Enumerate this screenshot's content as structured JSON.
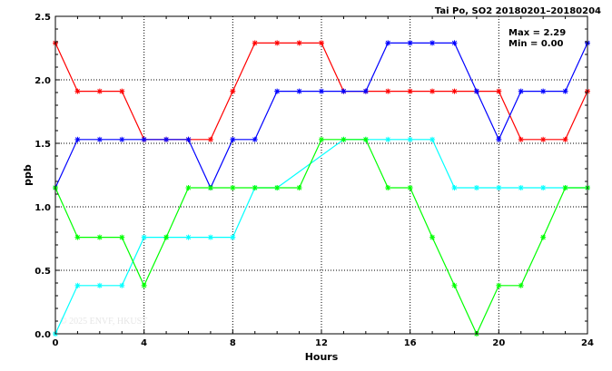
{
  "chart_data": {
    "type": "line",
    "title": "Tai Po, SO2 20180201–20180204",
    "xlabel": "Hours",
    "ylabel": "ppb",
    "xlim": [
      0,
      24
    ],
    "ylim": [
      0,
      2.5
    ],
    "xticks": [
      "0",
      "4",
      "8",
      "12",
      "16",
      "20",
      "24"
    ],
    "yticks": [
      "0.0",
      "0.5",
      "1.0",
      "1.5",
      "2.0",
      "2.5"
    ],
    "grid": "dotted",
    "annotations": {
      "max": "Max = 2.29",
      "min": "Min = 0.00"
    },
    "watermark": "© 2025  ENVF, HKUST",
    "x": [
      0,
      1,
      2,
      3,
      4,
      5,
      6,
      7,
      8,
      9,
      10,
      11,
      12,
      13,
      14,
      15,
      16,
      17,
      18,
      19,
      20,
      21,
      22,
      23,
      24
    ],
    "series": [
      {
        "color": "#ff0000",
        "values": [
          2.29,
          1.91,
          1.91,
          1.91,
          1.53,
          1.53,
          1.53,
          1.53,
          1.91,
          2.29,
          2.29,
          2.29,
          2.29,
          1.91,
          1.91,
          1.91,
          1.91,
          1.91,
          1.91,
          1.91,
          1.91,
          1.53,
          1.53,
          1.53,
          1.91
        ]
      },
      {
        "color": "#0000ff",
        "values": [
          1.15,
          1.53,
          1.53,
          1.53,
          1.53,
          1.53,
          1.53,
          1.15,
          1.53,
          1.53,
          1.91,
          1.91,
          1.91,
          1.91,
          1.91,
          2.29,
          2.29,
          2.29,
          2.29,
          1.91,
          1.53,
          1.91,
          1.91,
          1.91,
          2.29
        ]
      },
      {
        "color": "#00ffff",
        "values": [
          0.0,
          0.38,
          0.38,
          0.38,
          0.76,
          0.76,
          0.76,
          0.76,
          0.76,
          1.15,
          1.15,
          null,
          null,
          1.53,
          1.53,
          1.53,
          1.53,
          1.53,
          1.15,
          1.15,
          1.15,
          1.15,
          1.15,
          1.15,
          1.15
        ]
      },
      {
        "color": "#00ff00",
        "values": [
          1.15,
          0.76,
          0.76,
          0.76,
          0.38,
          0.76,
          1.15,
          1.15,
          1.15,
          1.15,
          1.15,
          1.15,
          1.53,
          1.53,
          1.53,
          1.15,
          1.15,
          0.76,
          0.38,
          0.0,
          0.38,
          0.38,
          0.76,
          1.15,
          1.15
        ]
      }
    ]
  }
}
